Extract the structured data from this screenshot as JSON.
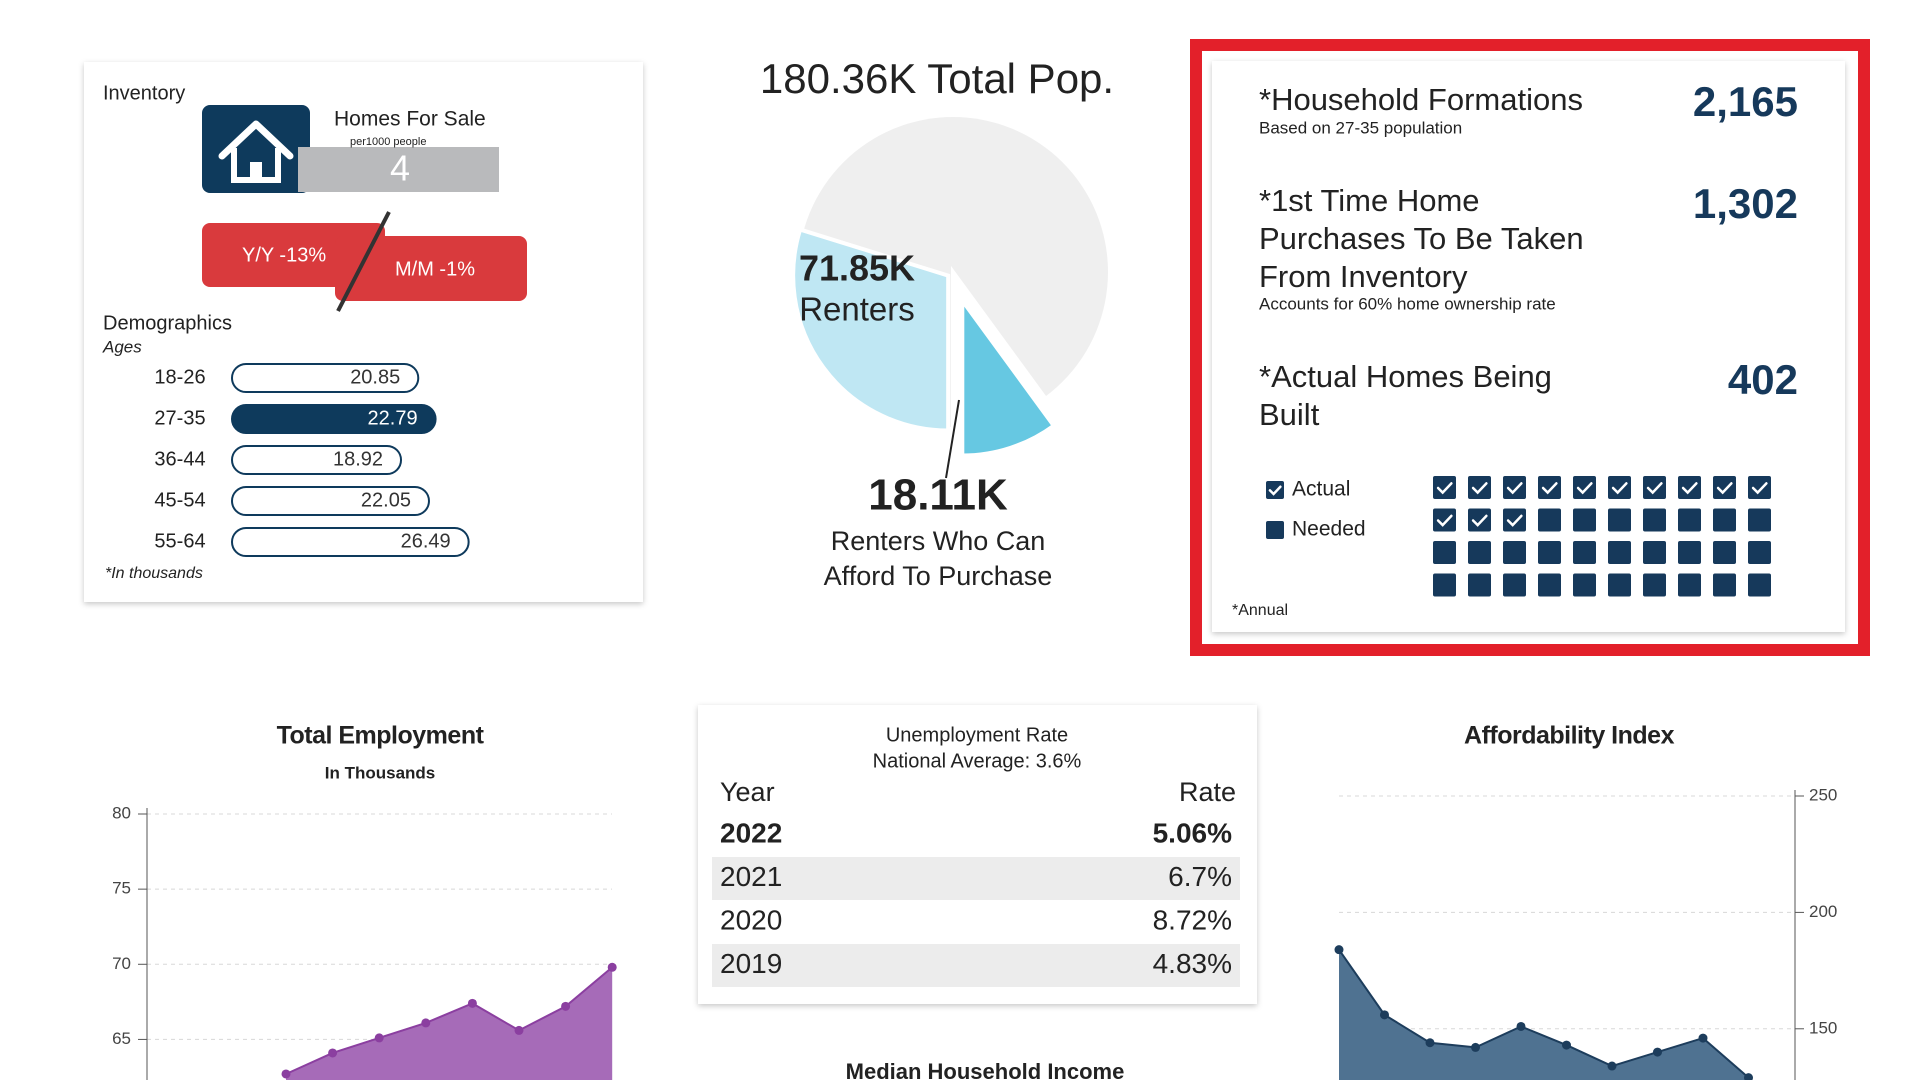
{
  "inventory": {
    "title": "Inventory",
    "homes_label": "Homes For Sale",
    "homes_note": "per1000 people",
    "homes_value": "4",
    "yoy": "Y/Y  -13%",
    "mom": "M/M  -1%"
  },
  "chart_data": [
    {
      "type": "hbar",
      "title": "Demographics",
      "subtitle": "Ages",
      "note": "*In thousands",
      "categories": [
        "18-26",
        "27-35",
        "36-44",
        "45-54",
        "55-64"
      ],
      "values": [
        20.85,
        22.79,
        18.92,
        22.05,
        26.49
      ],
      "colors": [
        "#ffffff",
        "#0e3a5c",
        "#ffffff",
        "#ffffff",
        "#ffffff"
      ],
      "xlim": [
        0,
        30
      ]
    },
    {
      "type": "pie",
      "title": "Total Pop.",
      "total": 180.36,
      "total_label": "180.36K",
      "categories": [
        "Renters",
        "Renters Who Can Afford To Purchase"
      ],
      "values": [
        71.85,
        18.11
      ],
      "value_labels": [
        "71.85K",
        "18.11K"
      ],
      "colors": [
        "#bfe7f3",
        "#66c8e2"
      ],
      "rest_color": "#efefef"
    },
    {
      "type": "area",
      "title": "Total Employment",
      "subtitle": "In Thousands",
      "categories": [
        null,
        null,
        null,
        null,
        null,
        null,
        null,
        null
      ],
      "values": [
        62.7,
        64.1,
        65.1,
        66.1,
        67.4,
        65.6,
        67.2,
        69.8
      ],
      "color": "#a66bb8",
      "line_color": "#8b3fa0",
      "ylim": [
        62.3,
        80
      ],
      "yticks": [
        65,
        70,
        75,
        80
      ],
      "grid": true,
      "axis_side": "left"
    },
    {
      "type": "area",
      "title": "Affordability Index",
      "categories": [
        null,
        null,
        null,
        null,
        null,
        null,
        null,
        null,
        null,
        null
      ],
      "values": [
        184,
        156,
        144,
        142,
        151,
        143,
        134,
        140,
        146,
        129
      ],
      "color": "#4f7291",
      "line_color": "#1d3d5c",
      "ylim": [
        128,
        250
      ],
      "yticks": [
        150,
        200,
        250
      ],
      "grid": true,
      "axis_side": "right"
    }
  ],
  "household": {
    "items": [
      {
        "title": "*Household Formations",
        "note": "Based on 27-35 population",
        "value": "2,165"
      },
      {
        "title": "*1st Time Home Purchases To Be Taken From Inventory",
        "note": "Accounts for 60% home ownership rate",
        "value": "1,302"
      },
      {
        "title": "*Actual Homes Being Built",
        "value": "402"
      }
    ],
    "legend": [
      "Actual",
      "Needed"
    ],
    "footnote": "*Annual"
  },
  "unemployment": {
    "title": "Unemployment Rate",
    "subtitle": "National Average: 3.6%",
    "columns": [
      "Year",
      "Rate"
    ],
    "rows": [
      [
        "2022",
        "5.06%"
      ],
      [
        "2021",
        "6.7%"
      ],
      [
        "2020",
        "8.72%"
      ],
      [
        "2019",
        "4.83%"
      ]
    ]
  },
  "median_income": {
    "title": "Median Household Income"
  }
}
